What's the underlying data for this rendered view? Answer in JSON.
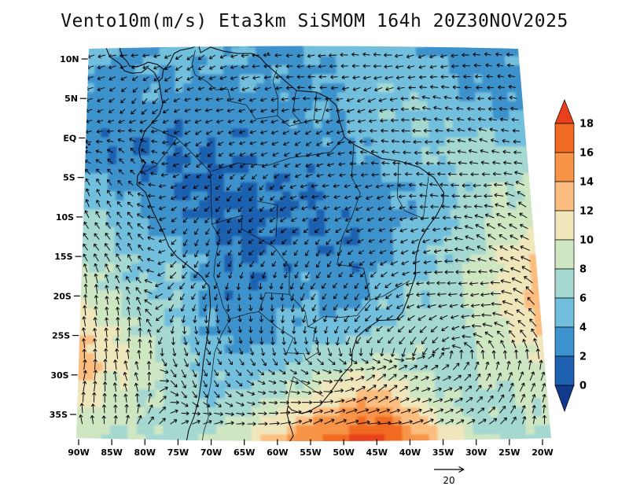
{
  "figure": {
    "background": "#ffffff"
  },
  "chart_data": {
    "type": "heatmap",
    "title": "Vento10m(m/s) Eta3km SiSMOM 164h 20Z30NOV2025",
    "variable": "Vento 10m (m/s)",
    "model": "Eta3km SiSMOM",
    "forecast_hour": "164h",
    "valid_time": "20Z30NOV2025",
    "x_tick_labels": [
      "90W",
      "85W",
      "80W",
      "75W",
      "70W",
      "65W",
      "60W",
      "55W",
      "50W",
      "45W",
      "40W",
      "35W",
      "30W",
      "25W",
      "20W"
    ],
    "y_tick_labels": [
      "10N",
      "5N",
      "EQ",
      "5S",
      "10S",
      "15S",
      "20S",
      "25S",
      "30S",
      "35S"
    ],
    "lon_range": [
      -90,
      -20
    ],
    "lat_ticks": [
      10,
      5,
      0,
      -5,
      -10,
      -15,
      -20,
      -25,
      -30,
      -35
    ],
    "grid": false,
    "colorbar": {
      "tick_labels": [
        "18",
        "16",
        "14",
        "12",
        "10",
        "8",
        "6",
        "4",
        "2",
        "0"
      ],
      "levels": [
        0,
        2,
        4,
        6,
        8,
        10,
        12,
        14,
        16,
        18
      ],
      "colors": {
        "over": "#e8401c",
        "boxes_top_to_bottom": [
          "#f06a22",
          "#f79447",
          "#fbbd80",
          "#f0e6bc",
          "#cfe6c3",
          "#a5d8d0",
          "#72bfdd",
          "#3c92cc",
          "#1e61b0"
        ],
        "under": "#123a8c"
      }
    },
    "reference_vector": {
      "label": "20",
      "speed_m_s": 20
    },
    "speed_grid": {
      "note": "estimated 10m wind speed (m/s) sampled on a 15x12 lon/lat grid of the plotted field, row 0 = north",
      "cols": 15,
      "rows": 12,
      "values": [
        [
          5,
          4,
          4,
          5,
          5,
          4,
          3,
          4,
          5,
          5,
          5,
          4,
          3,
          3,
          4
        ],
        [
          4,
          3,
          4,
          4,
          3,
          4,
          4,
          3,
          4,
          5,
          6,
          5,
          4,
          3,
          3
        ],
        [
          2,
          3,
          3,
          2,
          3,
          3,
          3,
          4,
          4,
          5,
          6,
          6,
          5,
          5,
          4
        ],
        [
          3,
          2,
          2,
          2,
          2,
          2,
          3,
          3,
          3,
          4,
          5,
          6,
          7,
          7,
          6
        ],
        [
          5,
          4,
          3,
          2,
          1,
          2,
          2,
          2,
          3,
          3,
          4,
          5,
          6,
          8,
          8
        ],
        [
          7,
          6,
          4,
          3,
          2,
          1,
          2,
          2,
          2,
          3,
          4,
          5,
          7,
          9,
          10
        ],
        [
          8,
          7,
          5,
          6,
          3,
          2,
          2,
          3,
          2,
          3,
          5,
          6,
          8,
          10,
          12
        ],
        [
          10,
          8,
          6,
          6,
          3,
          2,
          3,
          4,
          3,
          5,
          6,
          7,
          9,
          11,
          13
        ],
        [
          12,
          10,
          8,
          6,
          4,
          3,
          4,
          5,
          5,
          6,
          7,
          7,
          8,
          10,
          12
        ],
        [
          13,
          11,
          9,
          7,
          5,
          5,
          6,
          7,
          8,
          9,
          8,
          7,
          8,
          9,
          10
        ],
        [
          11,
          9,
          8,
          7,
          6,
          7,
          9,
          11,
          13,
          14,
          11,
          8,
          7,
          8,
          9
        ],
        [
          9,
          8,
          8,
          7,
          8,
          10,
          13,
          16,
          18,
          19,
          15,
          11,
          8,
          7,
          8
        ]
      ]
    },
    "direction_grid": {
      "note": "estimated arrow pointing direction, degrees CCW from east, 10x8 grid, row 0 = north",
      "cols": 10,
      "rows": 8,
      "deg": [
        [
          195,
          195,
          200,
          195,
          190,
          185,
          185,
          185,
          180,
          180
        ],
        [
          205,
          215,
          210,
          200,
          195,
          190,
          185,
          180,
          175,
          175
        ],
        [
          150,
          140,
          210,
          215,
          205,
          195,
          185,
          175,
          170,
          165
        ],
        [
          120,
          130,
          220,
          230,
          220,
          210,
          195,
          180,
          165,
          155
        ],
        [
          105,
          115,
          240,
          255,
          245,
          230,
          215,
          195,
          175,
          145
        ],
        [
          95,
          105,
          265,
          280,
          265,
          250,
          230,
          210,
          170,
          120
        ],
        [
          90,
          95,
          300,
          320,
          350,
          10,
          25,
          35,
          60,
          85
        ],
        [
          85,
          75,
          45,
          25,
          15,
          10,
          15,
          25,
          45,
          75
        ]
      ]
    },
    "geometry": {
      "coastlines": [
        [
          [
            -73.8,
            -38.8
          ],
          [
            -73.4,
            -37.0
          ],
          [
            -72.6,
            -35.3
          ],
          [
            -71.9,
            -33.2
          ],
          [
            -71.4,
            -30.2
          ],
          [
            -71.2,
            -28.4
          ],
          [
            -70.6,
            -25.3
          ],
          [
            -70.3,
            -23.1
          ],
          [
            -70.1,
            -21.2
          ],
          [
            -70.3,
            -18.8
          ],
          [
            -71.5,
            -17.5
          ],
          [
            -73.3,
            -16.3
          ],
          [
            -75.2,
            -15.0
          ],
          [
            -76.4,
            -13.7
          ],
          [
            -77.2,
            -12.0
          ],
          [
            -78.8,
            -9.3
          ],
          [
            -79.9,
            -6.9
          ],
          [
            -81.2,
            -5.9
          ],
          [
            -81.1,
            -4.8
          ],
          [
            -80.4,
            -3.9
          ],
          [
            -79.9,
            -3.1
          ],
          [
            -80.7,
            -2.5
          ],
          [
            -80.9,
            -1.4
          ],
          [
            -80.4,
            -0.1
          ],
          [
            -80.0,
            0.9
          ],
          [
            -78.9,
            1.9
          ],
          [
            -77.8,
            3.0
          ],
          [
            -77.3,
            4.3
          ],
          [
            -77.6,
            5.8
          ],
          [
            -77.9,
            7.2
          ],
          [
            -77.4,
            7.6
          ],
          [
            -77.2,
            8.7
          ],
          [
            -76.8,
            8.9
          ],
          [
            -76.2,
            9.6
          ],
          [
            -75.6,
            10.7
          ],
          [
            -74.7,
            11.1
          ],
          [
            -72.9,
            11.4
          ],
          [
            -71.9,
            11.8
          ],
          [
            -71.6,
            10.8
          ],
          [
            -70.1,
            11.5
          ],
          [
            -68.2,
            11.0
          ],
          [
            -66.0,
            10.7
          ],
          [
            -63.9,
            10.7
          ],
          [
            -62.6,
            10.2
          ],
          [
            -61.9,
            9.5
          ],
          [
            -60.7,
            8.6
          ],
          [
            -58.4,
            6.9
          ],
          [
            -57.1,
            6.0
          ],
          [
            -54.1,
            5.8
          ],
          [
            -52.4,
            5.1
          ],
          [
            -51.1,
            4.1
          ],
          [
            -50.6,
            2.1
          ],
          [
            -49.9,
            0.1
          ],
          [
            -48.3,
            -0.9
          ],
          [
            -44.3,
            -2.6
          ],
          [
            -41.7,
            -2.9
          ],
          [
            -38.6,
            -3.7
          ],
          [
            -36.4,
            -5.0
          ],
          [
            -34.9,
            -6.9
          ],
          [
            -35.0,
            -8.2
          ],
          [
            -36.0,
            -9.8
          ],
          [
            -37.4,
            -11.4
          ],
          [
            -38.5,
            -13.0
          ],
          [
            -39.1,
            -15.0
          ],
          [
            -39.2,
            -17.5
          ],
          [
            -39.8,
            -19.0
          ],
          [
            -40.3,
            -20.3
          ],
          [
            -41.1,
            -22.0
          ],
          [
            -42.1,
            -23.0
          ],
          [
            -44.7,
            -23.1
          ],
          [
            -46.5,
            -24.1
          ],
          [
            -48.0,
            -25.2
          ],
          [
            -48.7,
            -27.0
          ],
          [
            -48.8,
            -28.7
          ],
          [
            -50.3,
            -30.1
          ],
          [
            -51.9,
            -32.1
          ],
          [
            -53.5,
            -33.8
          ],
          [
            -55.0,
            -34.5
          ],
          [
            -56.3,
            -34.9
          ],
          [
            -57.9,
            -34.4
          ],
          [
            -58.4,
            -33.9
          ],
          [
            -58.6,
            -34.8
          ],
          [
            -58.1,
            -36.4
          ],
          [
            -57.6,
            -37.7
          ],
          [
            -58.2,
            -38.5
          ],
          [
            -59.7,
            -38.9
          ],
          [
            -61.0,
            -38.9
          ]
        ],
        [
          [
            -77.9,
            7.2
          ],
          [
            -78.6,
            8.3
          ],
          [
            -79.6,
            8.9
          ],
          [
            -80.5,
            8.3
          ],
          [
            -81.9,
            8.2
          ],
          [
            -83.1,
            8.5
          ],
          [
            -83.8,
            9.4
          ],
          [
            -85.3,
            10.3
          ],
          [
            -85.8,
            11.3
          ],
          [
            -86.9,
            12.0
          ]
        ],
        [
          [
            -77.2,
            8.7
          ],
          [
            -78.1,
            9.3
          ],
          [
            -79.5,
            9.6
          ],
          [
            -80.2,
            9.3
          ],
          [
            -81.2,
            9.0
          ],
          [
            -82.3,
            9.1
          ],
          [
            -82.7,
            9.7
          ],
          [
            -83.2,
            10.1
          ],
          [
            -83.7,
            11.0
          ],
          [
            -83.9,
            11.9
          ]
        ]
      ],
      "islands": [
        [
          -88.9,
          -0.3
        ],
        [
          -88.4,
          -0.8
        ],
        [
          -88.8,
          -1.2
        ],
        [
          -61.4,
          10.7
        ]
      ],
      "borders": [
        [
          [
            -72.4,
            11.1
          ],
          [
            -72.9,
            9.2
          ],
          [
            -72.4,
            8.0
          ],
          [
            -70.6,
            7.1
          ],
          [
            -69.3,
            6.1
          ],
          [
            -67.5,
            6.2
          ],
          [
            -67.0,
            4.6
          ],
          [
            -64.7,
            4.2
          ],
          [
            -63.3,
            2.4
          ],
          [
            -60.0,
            2.8
          ],
          [
            -59.9,
            5.0
          ],
          [
            -60.7,
            7.2
          ],
          [
            -60.1,
            8.6
          ]
        ],
        [
          [
            -57.2,
            6.0
          ],
          [
            -57.7,
            3.2
          ],
          [
            -56.4,
            1.9
          ],
          [
            -58.2,
            1.5
          ],
          [
            -60.0,
            2.8
          ]
        ],
        [
          [
            -54.1,
            5.7
          ],
          [
            -54.5,
            2.3
          ],
          [
            -56.4,
            1.9
          ]
        ],
        [
          [
            -52.4,
            5.0
          ],
          [
            -53.3,
            2.2
          ],
          [
            -54.5,
            2.3
          ]
        ],
        [
          [
            -79.0,
            1.4
          ],
          [
            -76.9,
            0.6
          ],
          [
            -75.2,
            0.0
          ],
          [
            -73.6,
            -1.3
          ],
          [
            -70.1,
            -4.3
          ],
          [
            -69.9,
            -10.9
          ]
        ],
        [
          [
            -80.3,
            -4.4
          ],
          [
            -78.3,
            -3.5
          ],
          [
            -75.2,
            -0.1
          ]
        ],
        [
          [
            -69.9,
            -10.9
          ],
          [
            -68.7,
            -12.6
          ],
          [
            -69.4,
            -15.5
          ],
          [
            -69.6,
            -17.5
          ],
          [
            -68.9,
            -19.1
          ],
          [
            -68.2,
            -21.3
          ],
          [
            -67.1,
            -22.9
          ],
          [
            -64.3,
            -22.2
          ],
          [
            -62.8,
            -22.0
          ],
          [
            -61.8,
            -19.6
          ],
          [
            -58.2,
            -19.8
          ]
        ],
        [
          [
            -69.9,
            -10.9
          ],
          [
            -65.3,
            -9.8
          ],
          [
            -65.4,
            -11.5
          ],
          [
            -60.5,
            -13.8
          ],
          [
            -58.2,
            -16.3
          ],
          [
            -58.2,
            -19.8
          ]
        ],
        [
          [
            -67.1,
            -22.9
          ],
          [
            -68.4,
            -24.8
          ],
          [
            -69.5,
            -27.2
          ],
          [
            -69.8,
            -29.2
          ],
          [
            -70.1,
            -31.3
          ],
          [
            -70.6,
            -33.3
          ],
          [
            -70.4,
            -35.3
          ],
          [
            -71.1,
            -37.1
          ],
          [
            -71.4,
            -38.6
          ]
        ],
        [
          [
            -58.2,
            -19.8
          ],
          [
            -55.8,
            -22.0
          ],
          [
            -55.4,
            -23.9
          ],
          [
            -54.3,
            -24.1
          ],
          [
            -54.6,
            -25.7
          ],
          [
            -53.9,
            -25.7
          ],
          [
            -53.8,
            -27.1
          ],
          [
            -55.7,
            -28.1
          ],
          [
            -56.0,
            -27.3
          ],
          [
            -58.6,
            -27.2
          ],
          [
            -57.6,
            -25.3
          ],
          [
            -58.5,
            -24.8
          ],
          [
            -60.0,
            -24.0
          ],
          [
            -62.8,
            -22.0
          ]
        ],
        [
          [
            -53.1,
            -32.7
          ],
          [
            -54.6,
            -31.9
          ],
          [
            -56.0,
            -31.1
          ],
          [
            -57.6,
            -30.2
          ],
          [
            -58.1,
            -31.9
          ],
          [
            -58.4,
            -33.1
          ],
          [
            -58.4,
            -33.9
          ]
        ],
        [
          [
            -69.9,
            -4.2
          ],
          [
            -66.0,
            -3.2
          ],
          [
            -61.5,
            -3.5
          ],
          [
            -58.0,
            -2.5
          ],
          [
            -55.0,
            -2.2
          ],
          [
            -52.0,
            -1.8
          ],
          [
            -49.9,
            0.1
          ]
        ],
        [
          [
            -48.5,
            -0.9
          ],
          [
            -48.8,
            -5.0
          ],
          [
            -47.5,
            -7.0
          ],
          [
            -48.8,
            -10.0
          ],
          [
            -50.2,
            -12.5
          ],
          [
            -51.0,
            -16.0
          ],
          [
            -47.0,
            -16.5
          ],
          [
            -46.0,
            -20.5
          ],
          [
            -44.0,
            -20.0
          ],
          [
            -42.0,
            -19.0
          ],
          [
            -40.1,
            -18.1
          ]
        ],
        [
          [
            -63.0,
            -8.0
          ],
          [
            -60.0,
            -8.5
          ],
          [
            -60.2,
            -12.5
          ]
        ],
        [
          [
            -41.7,
            -2.9
          ],
          [
            -41.9,
            -7.5
          ],
          [
            -40.8,
            -9.2
          ],
          [
            -38.0,
            -10.2
          ],
          [
            -37.2,
            -4.9
          ]
        ],
        [
          [
            -46.0,
            -20.5
          ],
          [
            -48.0,
            -22.5
          ],
          [
            -50.5,
            -22.7
          ],
          [
            -53.0,
            -22.6
          ],
          [
            -55.4,
            -23.9
          ]
        ]
      ]
    }
  }
}
